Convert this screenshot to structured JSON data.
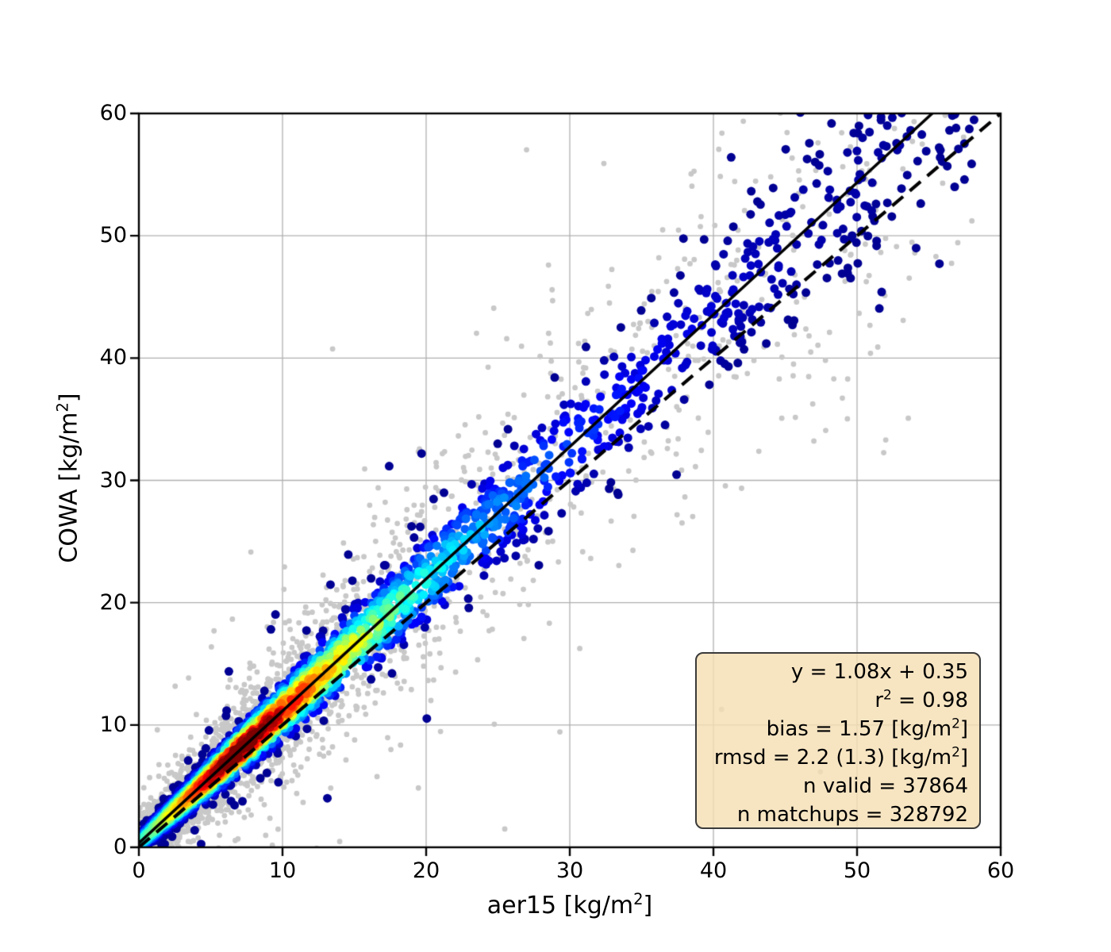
{
  "figure": {
    "background": "#ffffff"
  },
  "chart_data": {
    "type": "scatter",
    "title": "",
    "xlabel": {
      "pre": "aer15 [kg/m",
      "sup": "2",
      "post": "]"
    },
    "ylabel": {
      "pre": "COWA [kg/m",
      "sup": "2",
      "post": "]"
    },
    "xlim": [
      0,
      60
    ],
    "ylim": [
      0,
      60
    ],
    "x_ticks": [
      0,
      10,
      20,
      30,
      40,
      50,
      60
    ],
    "y_ticks": [
      0,
      10,
      20,
      30,
      40,
      50,
      60
    ],
    "x_tick_labels": [
      "0",
      "10",
      "20",
      "30",
      "40",
      "50",
      "60"
    ],
    "y_tick_labels": [
      "0",
      "10",
      "20",
      "30",
      "40",
      "50",
      "60"
    ],
    "grid": true,
    "grid_color": "#b0b0b0",
    "spine_color": "#000000",
    "fit_line": {
      "slope": 1.08,
      "intercept": 0.35,
      "style": "solid",
      "color": "#000000"
    },
    "identity_line": {
      "slope": 1,
      "intercept": 0,
      "style": "dashed",
      "color": "#000000"
    },
    "stats": {
      "equation": "y = 1.08x + 0.35",
      "r2": 0.98,
      "bias": 1.57,
      "bias_units": "kg/m2",
      "rmsd": "2.2 (1.3)",
      "rmsd_units": "kg/m2",
      "n_valid": 37864,
      "n_matchups": 328792
    },
    "layers": [
      {
        "name": "all-matchups",
        "color": "#c8c8c8",
        "marker_radius_px": 3.4
      },
      {
        "name": "valid-density-colored",
        "colormap": "jet",
        "marker_radius_px": 5.5
      }
    ],
    "point_cloud_model": {
      "note": "estimated from pixels; density scatter of valid retrievals (jet colormap, red = densest near x=4-9 along fit line) over gray cloud of all matchups",
      "seed": 1337,
      "n_valid_drawn": 3900,
      "n_matchup_drawn": 2700,
      "x_exp_mean": 7.5,
      "x_uniform_frac": 0.18,
      "x_max": 58.5,
      "noise_sigma_base": 0.35,
      "noise_sigma_slope": 0.075,
      "gray_sigma_mult": 2.6,
      "valid_outlier_prob": 0.03,
      "gray_outlier_prob": 0.08,
      "density_peak_x": 7,
      "density_decay": 13
    }
  },
  "stats_box": {
    "background": "#f5deb3",
    "border_color": "#3a3a3a",
    "lines": [
      {
        "pre": "y = 1.08x + 0.35",
        "sup": "",
        "post": ""
      },
      {
        "pre": "r",
        "sup": "2",
        "post": " = 0.98"
      },
      {
        "pre": "bias = 1.57 [kg/m",
        "sup": "2",
        "post": "]"
      },
      {
        "pre": "rmsd = 2.2 (1.3) [kg/m",
        "sup": "2",
        "post": "]"
      },
      {
        "pre": "n valid = 37864",
        "sup": "",
        "post": ""
      },
      {
        "pre": "n matchups = 328792",
        "sup": "",
        "post": ""
      }
    ]
  }
}
